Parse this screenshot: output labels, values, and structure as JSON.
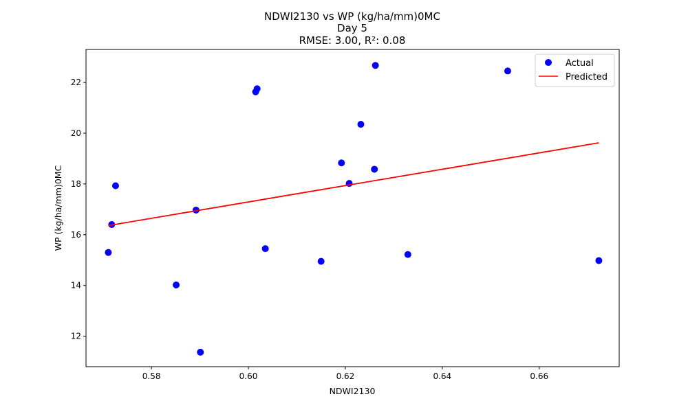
{
  "chart_data": {
    "type": "scatter",
    "title": "NDWI2130 vs WP (kg/ha/mm)0MC",
    "subtitle": "Day 5",
    "metrics": "RMSE: 3.00, R²: 0.08",
    "xlabel": "NDWI2130",
    "ylabel": "WP (kg/ha/mm)0MC",
    "xlim": [
      0.5665,
      0.6765
    ],
    "ylim": [
      10.8,
      23.3
    ],
    "xticks": [
      0.58,
      0.6,
      0.62,
      0.64,
      0.66
    ],
    "xtick_labels": [
      "0.58",
      "0.60",
      "0.62",
      "0.64",
      "0.66"
    ],
    "yticks": [
      12,
      14,
      16,
      18,
      20,
      22
    ],
    "ytick_labels": [
      "12",
      "14",
      "16",
      "18",
      "20",
      "22"
    ],
    "grid": false,
    "legend_position": "top-right",
    "series": [
      {
        "name": "Actual",
        "kind": "scatter",
        "color": "#0000ff",
        "points": [
          {
            "x": 0.5711,
            "y": 15.3
          },
          {
            "x": 0.5718,
            "y": 16.4
          },
          {
            "x": 0.5726,
            "y": 17.93
          },
          {
            "x": 0.5851,
            "y": 14.02
          },
          {
            "x": 0.5892,
            "y": 16.97
          },
          {
            "x": 0.5901,
            "y": 11.37
          },
          {
            "x": 0.6015,
            "y": 21.63
          },
          {
            "x": 0.6018,
            "y": 21.75
          },
          {
            "x": 0.6035,
            "y": 15.45
          },
          {
            "x": 0.615,
            "y": 14.95
          },
          {
            "x": 0.6192,
            "y": 18.83
          },
          {
            "x": 0.6208,
            "y": 18.02
          },
          {
            "x": 0.6232,
            "y": 20.35
          },
          {
            "x": 0.626,
            "y": 18.58
          },
          {
            "x": 0.6262,
            "y": 22.67
          },
          {
            "x": 0.6329,
            "y": 15.22
          },
          {
            "x": 0.6535,
            "y": 22.45
          },
          {
            "x": 0.6723,
            "y": 14.98
          }
        ]
      },
      {
        "name": "Predicted",
        "kind": "line",
        "color": "#ff0000",
        "points": [
          {
            "x": 0.5711,
            "y": 16.36
          },
          {
            "x": 0.6723,
            "y": 19.62
          }
        ]
      }
    ]
  }
}
